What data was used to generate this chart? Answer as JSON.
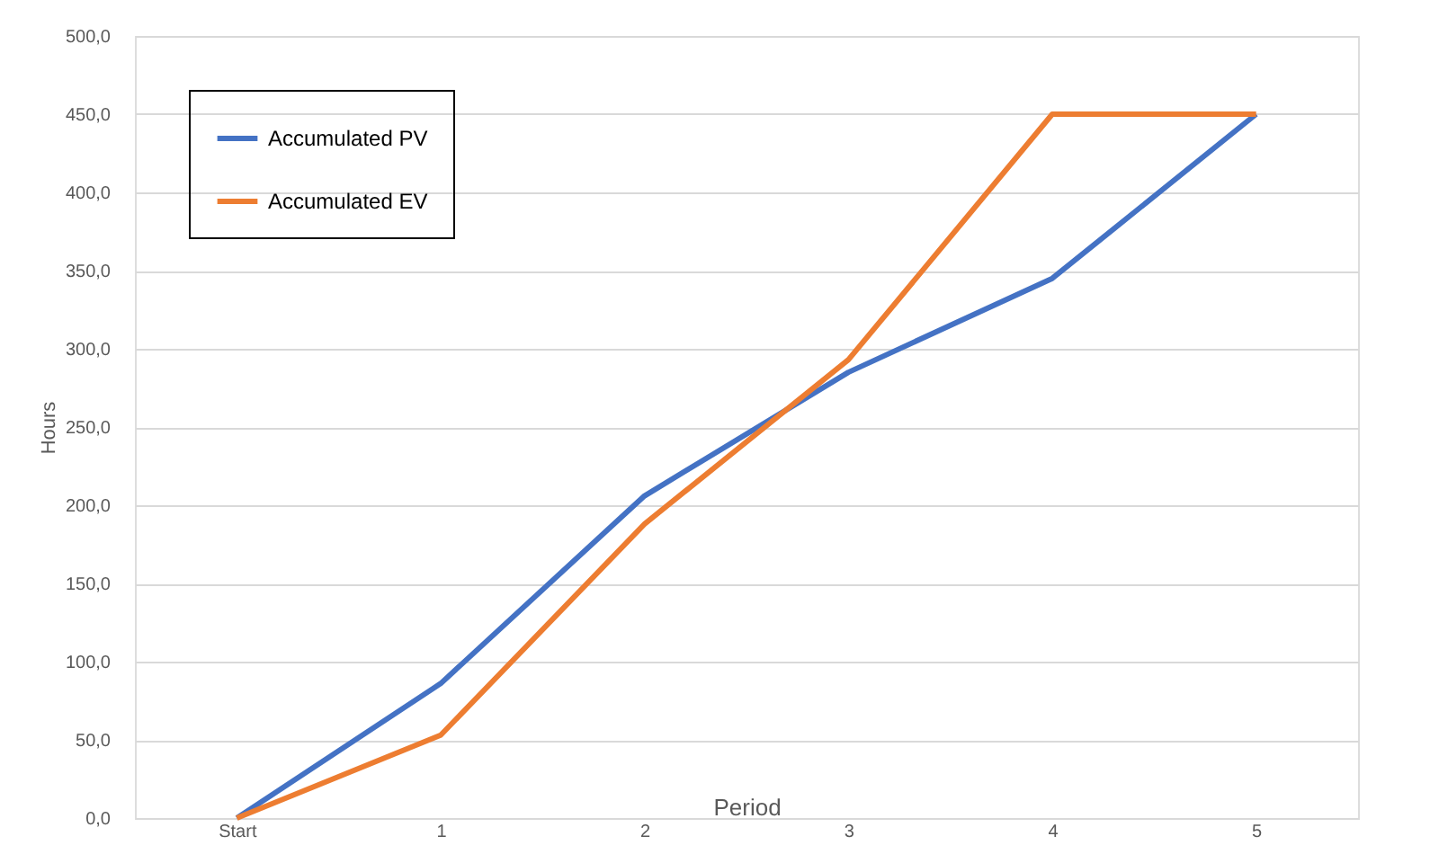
{
  "chart_data": {
    "type": "line",
    "xlabel": "Period",
    "ylabel": "Hours",
    "categories": [
      "Start",
      "1",
      "2",
      "3",
      "4",
      "5"
    ],
    "series": [
      {
        "name": "Accumulated PV",
        "color": "#4472c4",
        "values": [
          0,
          86,
          206,
          285,
          345,
          450
        ]
      },
      {
        "name": "Accumulated EV",
        "color": "#ed7d31",
        "values": [
          0,
          53,
          188,
          293,
          450,
          450
        ]
      }
    ],
    "ylim": [
      0,
      500
    ],
    "yticks": [
      {
        "value": 0,
        "label": "0,0"
      },
      {
        "value": 50,
        "label": "50,0"
      },
      {
        "value": 100,
        "label": "100,0"
      },
      {
        "value": 150,
        "label": "150,0"
      },
      {
        "value": 200,
        "label": "200,0"
      },
      {
        "value": 250,
        "label": "250,0"
      },
      {
        "value": 300,
        "label": "300,0"
      },
      {
        "value": 350,
        "label": "350,0"
      },
      {
        "value": 400,
        "label": "400,0"
      },
      {
        "value": 450,
        "label": "450,0"
      },
      {
        "value": 500,
        "label": "500,0"
      }
    ],
    "grid": "y",
    "legend": "top left",
    "marker": "none",
    "line_style": "solid"
  }
}
